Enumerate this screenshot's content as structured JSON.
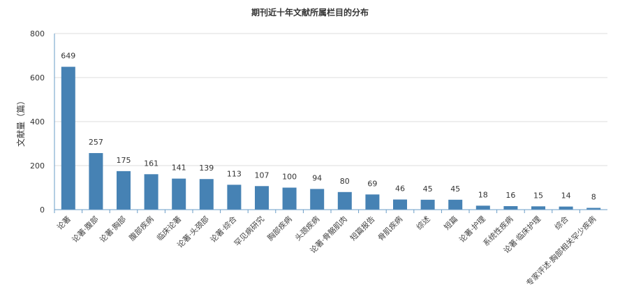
{
  "chart_data": {
    "type": "bar",
    "title": "期刊近十年文献所属栏目的分布",
    "ylabel": "文献量（篇）",
    "xlabel": "",
    "ylim": [
      0,
      800
    ],
    "yticks": [
      0,
      200,
      400,
      600,
      800
    ],
    "grid": true,
    "bar_color": "#4682b4",
    "categories": [
      "论著",
      "论著·腹部",
      "论著·胸部",
      "腹部疾病",
      "临床论著",
      "论著·头颈部",
      "论著·综合",
      "罕见病研究",
      "胸部疾病",
      "头颈疾病",
      "论著·骨骼肌肉",
      "短篇报告",
      "骨肌疾病",
      "综述",
      "短篇",
      "论著·护理",
      "系统性疾病",
      "论著·临床护理",
      "综合",
      "专家评述·胸部相关罕少疾病"
    ],
    "values": [
      649,
      257,
      175,
      161,
      141,
      139,
      113,
      107,
      100,
      94,
      80,
      69,
      46,
      45,
      45,
      18,
      16,
      15,
      14,
      8
    ]
  }
}
